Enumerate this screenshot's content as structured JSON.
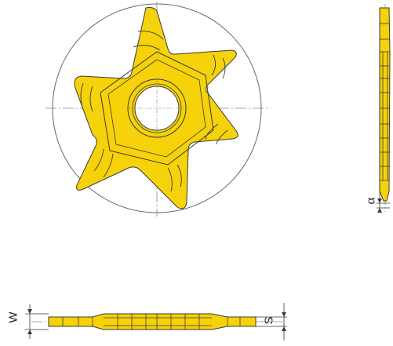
{
  "labels": {
    "alpha": "α",
    "w": "W",
    "s": "S"
  },
  "colors": {
    "insert_fill": "#f5d20a",
    "outline": "#3a3a3a",
    "circle": "#555555",
    "background": "#ffffff"
  },
  "insert": {
    "teeth": 6
  }
}
